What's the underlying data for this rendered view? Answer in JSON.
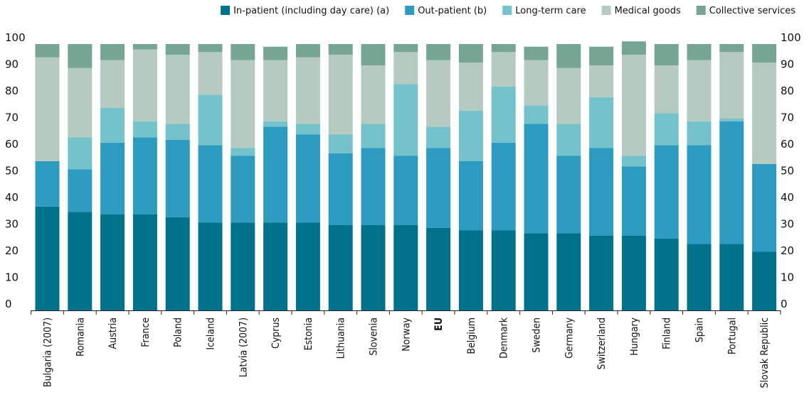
{
  "chart_data": {
    "type": "bar",
    "stacked": true,
    "title": "",
    "xlabel": "",
    "ylabel": "",
    "ylim": [
      0,
      100
    ],
    "yticks": [
      0,
      10,
      20,
      30,
      40,
      50,
      60,
      70,
      80,
      90,
      100
    ],
    "grid": false,
    "legend_position": "top-right",
    "bold_categories": [
      "EU"
    ],
    "categories": [
      "Bulgaria (2007)",
      "Romania",
      "Austria",
      "France",
      "Poland",
      "Iceland",
      "Latvia (2007)",
      "Cyprus",
      "Estonia",
      "Lithuania",
      "Slovenia",
      "Norway",
      "EU",
      "Belgium",
      "Denmark",
      "Sweden",
      "Germany",
      "Switzerland",
      "Hungary",
      "Finland",
      "Spain",
      "Portugal",
      "Slovak Republic"
    ],
    "series": [
      {
        "name": "In-patient (including day care) (a)",
        "color": "#00718a",
        "values": [
          39,
          37,
          36,
          36,
          35,
          33,
          33,
          33,
          33,
          32,
          32,
          32,
          31,
          30,
          30,
          29,
          29,
          28,
          28,
          27,
          25,
          25,
          22
        ]
      },
      {
        "name": "Out-patient (b)",
        "color": "#2c9bbf",
        "values": [
          17,
          16,
          27,
          29,
          29,
          29,
          25,
          36,
          33,
          27,
          29,
          26,
          30,
          26,
          33,
          41,
          29,
          33,
          26,
          35,
          37,
          46,
          33
        ]
      },
      {
        "name": "Long-term care",
        "color": "#73c2cc",
        "values": [
          0,
          12,
          13,
          6,
          6,
          19,
          3,
          2,
          4,
          7,
          9,
          27,
          8,
          19,
          21,
          7,
          12,
          19,
          4,
          12,
          9,
          1,
          0
        ]
      },
      {
        "name": "Medical goods",
        "color": "#b5cbc1",
        "values": [
          39,
          26,
          18,
          27,
          26,
          16,
          33,
          23,
          25,
          30,
          22,
          12,
          25,
          18,
          13,
          17,
          21,
          12,
          38,
          18,
          23,
          25,
          38
        ]
      },
      {
        "name": "Collective services",
        "color": "#76a693",
        "values": [
          5,
          9,
          6,
          2,
          4,
          3,
          6,
          5,
          5,
          4,
          8,
          3,
          6,
          7,
          3,
          5,
          9,
          7,
          5,
          8,
          6,
          3,
          7
        ]
      }
    ]
  }
}
